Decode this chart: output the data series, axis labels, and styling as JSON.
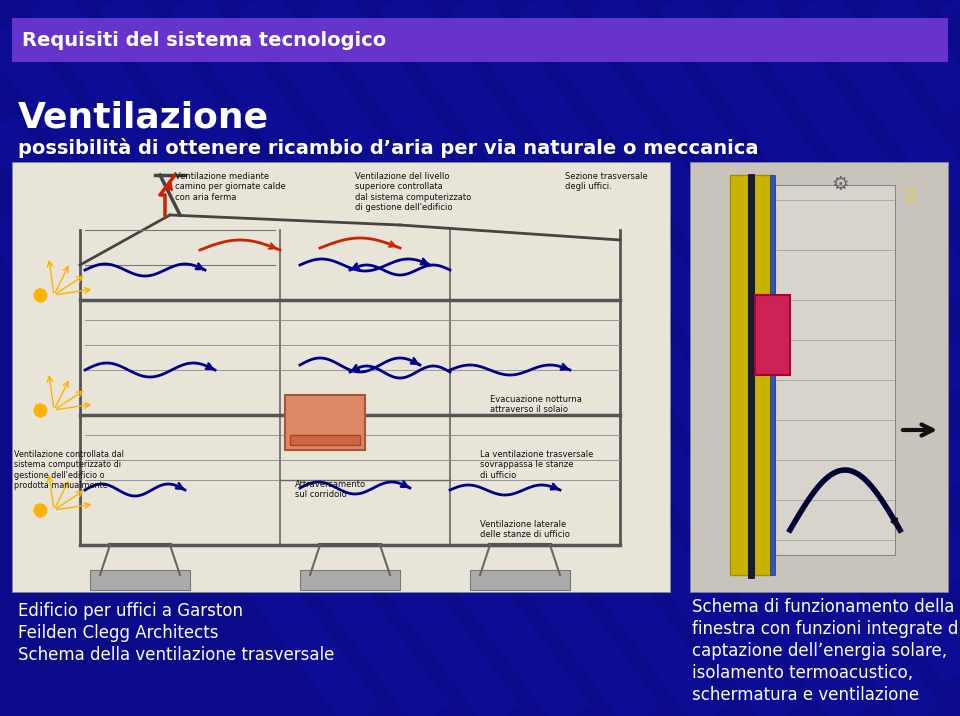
{
  "bg_color": "#0a0a8a",
  "banner_color": "#6633cc",
  "banner_text": "Requisiti del sistema tecnologico",
  "banner_text_color": "#FFFFFF",
  "title_line1": "Ventilazione",
  "title_line2": "possibilità di ottenere ricambio d’aria per via naturale o meccanica",
  "title_color": "#FFFFFF",
  "caption_left_line1": "Edificio per uffici a Garston",
  "caption_left_line2": "Feilden Clegg Architects",
  "caption_left_line3": "Schema della ventilazione trasversale",
  "caption_right_line1": "Schema di funzionamento della",
  "caption_right_line2": "finestra con funzioni integrate di",
  "caption_right_line3": "captazione dell’energia solare,",
  "caption_right_line4": "isolamento termoacustico,",
  "caption_right_line5": "schermatura e ventilazione",
  "caption_color": "#FFFFFF",
  "diagram_bg": "#e8e4d8",
  "diagram_bg2": "#d0cec8"
}
